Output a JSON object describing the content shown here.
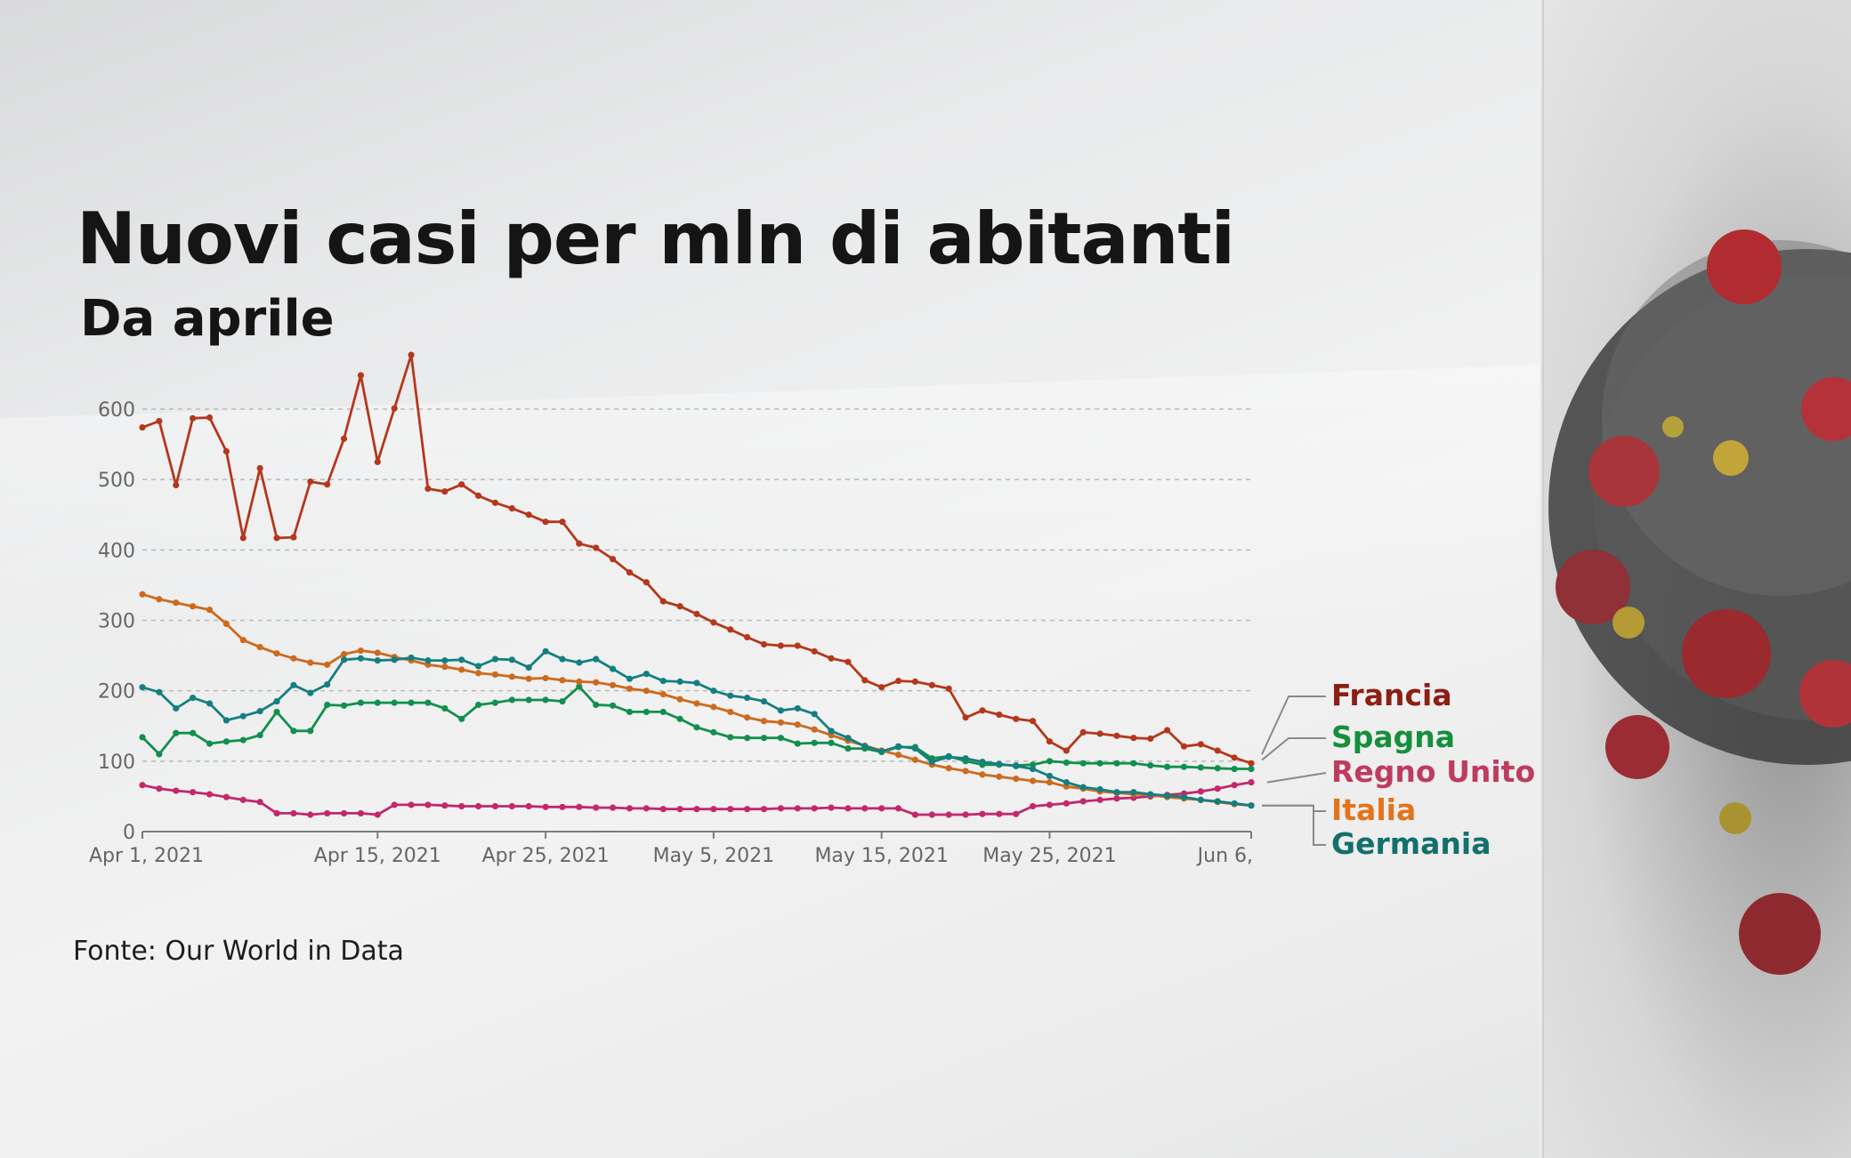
{
  "title": "Nuovi casi per mln di abitanti",
  "subtitle": "Da aprile",
  "source": "Fonte: Our World in Data",
  "chart_data": {
    "type": "line",
    "x_tick_labels": [
      "Apr 1, 2021",
      "Apr 15, 2021",
      "Apr 25, 2021",
      "May 5, 2021",
      "May 15, 2021",
      "May 25, 2021",
      "Jun 6,"
    ],
    "y_ticks": [
      0,
      100,
      200,
      300,
      400,
      500,
      600
    ],
    "ylim": [
      0,
      600
    ],
    "x_start": "2021-04-01",
    "x_end": "2021-06-06",
    "grid": true,
    "legend_position": "right, at line ends",
    "series": [
      {
        "name": "Francia",
        "color": "#b5371c",
        "legend_color": "#8c1e14",
        "values": [
          574,
          583,
          492,
          587,
          588,
          540,
          417,
          516,
          417,
          418,
          497,
          493,
          558,
          648,
          525,
          601,
          677,
          487,
          483,
          493,
          477,
          467,
          459,
          450,
          440,
          440,
          409,
          403,
          387,
          368,
          354,
          327,
          320,
          309,
          297,
          287,
          276,
          266,
          264,
          264,
          256,
          246,
          241,
          215,
          205,
          214,
          213,
          208,
          203,
          162,
          172,
          166,
          160,
          157,
          128,
          115,
          141,
          139,
          136,
          133,
          132,
          144,
          121,
          124,
          115,
          105,
          97
        ]
      },
      {
        "name": "Spagna",
        "color": "#128f4e",
        "legend_color": "#168f3c",
        "values": [
          134,
          110,
          140,
          140,
          125,
          128,
          130,
          137,
          170,
          143,
          143,
          180,
          179,
          183,
          183,
          183,
          183,
          183,
          175,
          160,
          180,
          183,
          187,
          187,
          187,
          185,
          206,
          180,
          179,
          170,
          170,
          170,
          160,
          148,
          141,
          134,
          133,
          133,
          133,
          125,
          126,
          126,
          118,
          118,
          113,
          120,
          120,
          104,
          107,
          100,
          95,
          95,
          94,
          95,
          100,
          98,
          97,
          97,
          97,
          97,
          94,
          92,
          92,
          91,
          90,
          89,
          89
        ]
      },
      {
        "name": "Regno Unito",
        "color": "#c2286b",
        "legend_color": "#bf3b5e",
        "values": [
          66,
          61,
          58,
          56,
          53,
          49,
          45,
          42,
          26,
          26,
          24,
          26,
          26,
          26,
          24,
          38,
          38,
          38,
          37,
          36,
          36,
          36,
          36,
          36,
          35,
          35,
          35,
          34,
          34,
          33,
          33,
          32,
          32,
          32,
          32,
          32,
          32,
          32,
          33,
          33,
          33,
          34,
          33,
          33,
          33,
          33,
          24,
          24,
          24,
          24,
          25,
          25,
          25,
          36,
          38,
          40,
          43,
          45,
          47,
          48,
          50,
          52,
          54,
          57,
          61,
          66,
          70
        ]
      },
      {
        "name": "Italia",
        "color": "#cc6a1d",
        "legend_color": "#e2741b",
        "values": [
          337,
          330,
          325,
          320,
          315,
          295,
          272,
          262,
          253,
          246,
          240,
          237,
          252,
          257,
          254,
          248,
          243,
          237,
          234,
          230,
          225,
          223,
          220,
          217,
          218,
          215,
          213,
          212,
          208,
          203,
          200,
          195,
          188,
          182,
          177,
          170,
          162,
          157,
          155,
          152,
          145,
          137,
          129,
          122,
          115,
          109,
          102,
          95,
          90,
          86,
          81,
          78,
          75,
          72,
          70,
          64,
          61,
          57,
          55,
          53,
          52,
          49,
          47,
          45,
          42,
          39,
          37
        ]
      },
      {
        "name": "Germania",
        "color": "#157f80",
        "legend_color": "#13706c",
        "values": [
          205,
          198,
          175,
          190,
          182,
          158,
          164,
          171,
          185,
          208,
          197,
          209,
          244,
          246,
          243,
          244,
          247,
          243,
          243,
          244,
          235,
          245,
          244,
          233,
          256,
          245,
          240,
          245,
          231,
          217,
          224,
          214,
          213,
          211,
          200,
          193,
          190,
          185,
          172,
          175,
          167,
          143,
          133,
          121,
          114,
          121,
          118,
          99,
          106,
          104,
          99,
          96,
          93,
          89,
          79,
          70,
          63,
          60,
          56,
          56,
          53,
          51,
          49,
          45,
          43,
          40,
          37
        ]
      }
    ]
  }
}
